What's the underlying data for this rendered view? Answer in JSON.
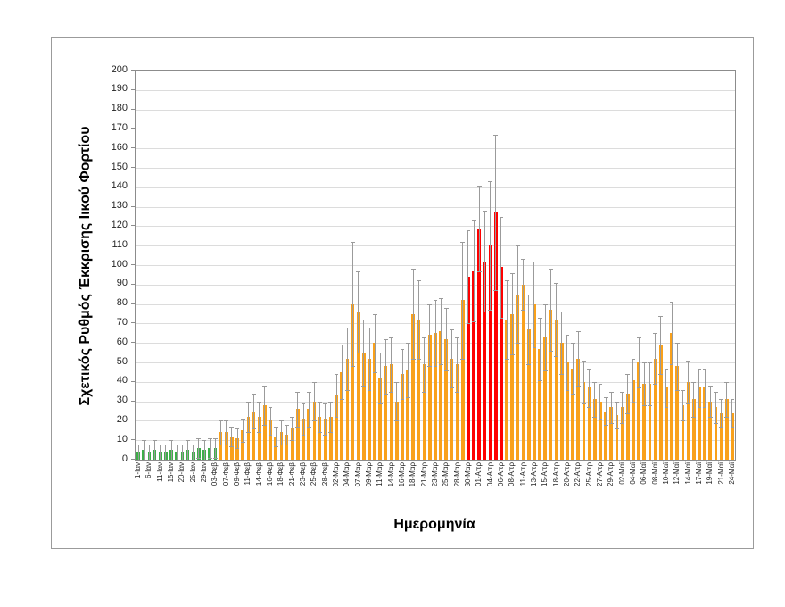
{
  "chart_data": {
    "type": "bar",
    "title": "",
    "xlabel": "Ημερομηνία",
    "ylabel": "Σχετικός Ρυθμός Έκκρισης Ιικού Φορτίου",
    "ylim": [
      0,
      200
    ],
    "ytick_step": 10,
    "grid": true,
    "legend": "none",
    "error_bars": "symmetric",
    "categories": [
      "1-Ιαν",
      "",
      "6-Ιαν",
      "",
      "11-Ιαν",
      "",
      "15-Ιαν",
      "",
      "20-Ιαν",
      "",
      "25-Ιαν",
      "",
      "29-Ιαν",
      "",
      "03-Φεβ",
      "",
      "07-Φεβ",
      "",
      "09-Φεβ",
      "",
      "11-Φεβ",
      "",
      "14-Φεβ",
      "",
      "16-Φεβ",
      "",
      "18-Φεβ",
      "",
      "21-Φεβ",
      "",
      "23-Φεβ",
      "",
      "25-Φεβ",
      "",
      "28-Φεβ",
      "",
      "02-Μαρ",
      "",
      "04-Μαρ",
      "",
      "07-Μαρ",
      "",
      "09-Μαρ",
      "",
      "11-Μαρ",
      "",
      "14-Μαρ",
      "",
      "16-Μαρ",
      "",
      "18-Μαρ",
      "",
      "21-Μαρ",
      "",
      "23-Μαρ",
      "",
      "25-Μαρ",
      "",
      "28-Μαρ",
      "",
      "30-Μαρ",
      "",
      "01-Απρ",
      "",
      "04-Απρ",
      "",
      "06-Απρ",
      "",
      "08-Απρ",
      "",
      "11-Απρ",
      "",
      "13-Απρ",
      "",
      "15-Απρ",
      "",
      "18-Απρ",
      "",
      "20-Απρ",
      "",
      "22-Απρ",
      "",
      "25-Απρ",
      "",
      "27-Απρ",
      "",
      "29-Απρ",
      "",
      "02-Μαϊ",
      "",
      "04-Μαϊ",
      "",
      "06-Μαϊ",
      "",
      "08-Μαϊ",
      "",
      "10-Μαϊ",
      "",
      "12-Μαϊ",
      "",
      "14-Μαϊ",
      "",
      "17-Μαϊ",
      "",
      "19-Μαϊ",
      "",
      "21-Μαϊ",
      "",
      "24-Μαϊ"
    ],
    "values": [
      4,
      5,
      4,
      5,
      4,
      4,
      5,
      4,
      4,
      5,
      4,
      6,
      5,
      6,
      6,
      14,
      14,
      12,
      11,
      15,
      22,
      25,
      22,
      28,
      20,
      12,
      14,
      13,
      16,
      26,
      21,
      26,
      30,
      22,
      21,
      22,
      33,
      45,
      52,
      80,
      76,
      55,
      52,
      60,
      42,
      48,
      49,
      30,
      44,
      46,
      75,
      72,
      49,
      64,
      65,
      66,
      62,
      52,
      49,
      82,
      94,
      97,
      119,
      102,
      110,
      127,
      99,
      72,
      75,
      85,
      90,
      67,
      80,
      57,
      63,
      77,
      72,
      60,
      50,
      47,
      52,
      40,
      37,
      31,
      30,
      25,
      27,
      23,
      27,
      34,
      41,
      50,
      39,
      39,
      52,
      59,
      37,
      65,
      48,
      28,
      40,
      31,
      37,
      37,
      30,
      27,
      24,
      31,
      24
    ],
    "error_deltas": [
      4,
      5,
      4,
      5,
      4,
      4,
      5,
      4,
      4,
      5,
      4,
      5,
      5,
      5,
      5,
      6,
      6,
      5,
      5,
      6,
      8,
      9,
      8,
      10,
      7,
      5,
      6,
      5,
      6,
      9,
      8,
      9,
      10,
      8,
      8,
      8,
      11,
      14,
      16,
      32,
      21,
      17,
      16,
      15,
      13,
      14,
      14,
      10,
      13,
      14,
      23,
      20,
      14,
      16,
      17,
      17,
      16,
      15,
      14,
      30,
      24,
      26,
      22,
      26,
      33,
      40,
      26,
      20,
      21,
      25,
      13,
      18,
      22,
      16,
      17,
      21,
      19,
      16,
      14,
      13,
      14,
      11,
      10,
      9,
      9,
      7,
      8,
      7,
      8,
      10,
      11,
      13,
      11,
      11,
      13,
      15,
      10,
      16,
      12,
      8,
      11,
      9,
      10,
      10,
      8,
      8,
      7,
      9,
      7
    ],
    "bar_colors": "gggggggggggggggooooooooooooooooooooooooooooooooooooooooooooorrrrrrroooooooooooooooooooooooooooooooooooooooooo",
    "palette": {
      "g": "#3EAE49",
      "o": "#F9A11B",
      "r": "#FE0000"
    },
    "error_bar_color": "#9b9b9b",
    "gridline_color": "#dcdcdc",
    "axis_color": "#8c8c8c",
    "text_color": "#262626"
  }
}
